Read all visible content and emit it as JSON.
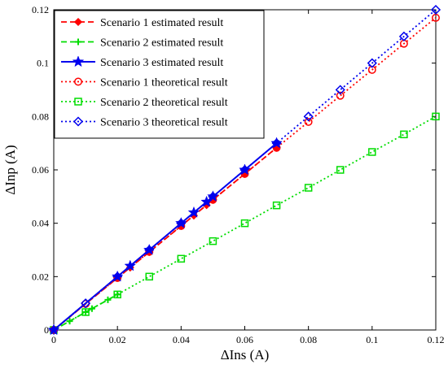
{
  "chart_data": {
    "type": "line",
    "xlabel": "ΔIns (A)",
    "ylabel": "ΔInp (A)",
    "xlim": [
      0,
      0.12
    ],
    "ylim": [
      0,
      0.12
    ],
    "x_ticks": [
      "0",
      "0.02",
      "0.04",
      "0.06",
      "0.08",
      "0.1",
      "0.12"
    ],
    "y_ticks": [
      "0",
      "0.02",
      "0.04",
      "0.06",
      "0.08",
      "0.1",
      "0.12"
    ],
    "grid": false,
    "legend_position": "top-left",
    "series": [
      {
        "name": "Scenario 1 estimated result",
        "color": "#ff0000",
        "line_style": "dashed",
        "marker": "diamond-filled",
        "x": [
          0,
          0.02,
          0.024,
          0.03,
          0.04,
          0.044,
          0.048,
          0.05,
          0.06,
          0.07
        ],
        "y": [
          0,
          0.0195,
          0.0234,
          0.0292,
          0.039,
          0.0429,
          0.0468,
          0.0488,
          0.0585,
          0.0683
        ]
      },
      {
        "name": "Scenario 2 estimated result",
        "color": "#00dd00",
        "line_style": "dashed",
        "marker": "plus",
        "x": [
          0,
          0.005,
          0.01,
          0.012,
          0.017,
          0.02
        ],
        "y": [
          0,
          0.0033,
          0.0067,
          0.008,
          0.0113,
          0.0133
        ]
      },
      {
        "name": "Scenario 3 estimated result",
        "color": "#0000ee",
        "line_style": "solid",
        "marker": "star-filled",
        "x": [
          0,
          0.02,
          0.024,
          0.03,
          0.04,
          0.044,
          0.048,
          0.05,
          0.06,
          0.07
        ],
        "y": [
          0,
          0.02,
          0.024,
          0.03,
          0.04,
          0.044,
          0.048,
          0.05,
          0.06,
          0.07
        ]
      },
      {
        "name": "Scenario 1 theoretical result",
        "color": "#ff0000",
        "line_style": "dotted",
        "marker": "circle-open",
        "x": [
          0,
          0.01,
          0.02,
          0.03,
          0.04,
          0.05,
          0.06,
          0.07,
          0.08,
          0.09,
          0.1,
          0.11,
          0.12
        ],
        "y": [
          0,
          0.0098,
          0.0195,
          0.0293,
          0.039,
          0.0488,
          0.0585,
          0.0683,
          0.078,
          0.0878,
          0.0975,
          0.1073,
          0.117
        ]
      },
      {
        "name": "Scenario 2 theoretical result",
        "color": "#00dd00",
        "line_style": "dotted",
        "marker": "square-open",
        "x": [
          0,
          0.01,
          0.02,
          0.03,
          0.04,
          0.05,
          0.06,
          0.07,
          0.08,
          0.09,
          0.1,
          0.11,
          0.12
        ],
        "y": [
          0,
          0.0067,
          0.0133,
          0.02,
          0.0267,
          0.0333,
          0.04,
          0.0467,
          0.0533,
          0.06,
          0.0667,
          0.0733,
          0.08
        ]
      },
      {
        "name": "Scenario 3 theoretical result",
        "color": "#0000ee",
        "line_style": "dotted",
        "marker": "diamond-open",
        "x": [
          0,
          0.01,
          0.02,
          0.03,
          0.04,
          0.05,
          0.06,
          0.07,
          0.08,
          0.09,
          0.1,
          0.11,
          0.12
        ],
        "y": [
          0,
          0.01,
          0.02,
          0.03,
          0.04,
          0.05,
          0.06,
          0.07,
          0.08,
          0.09,
          0.1,
          0.11,
          0.12
        ]
      }
    ]
  }
}
